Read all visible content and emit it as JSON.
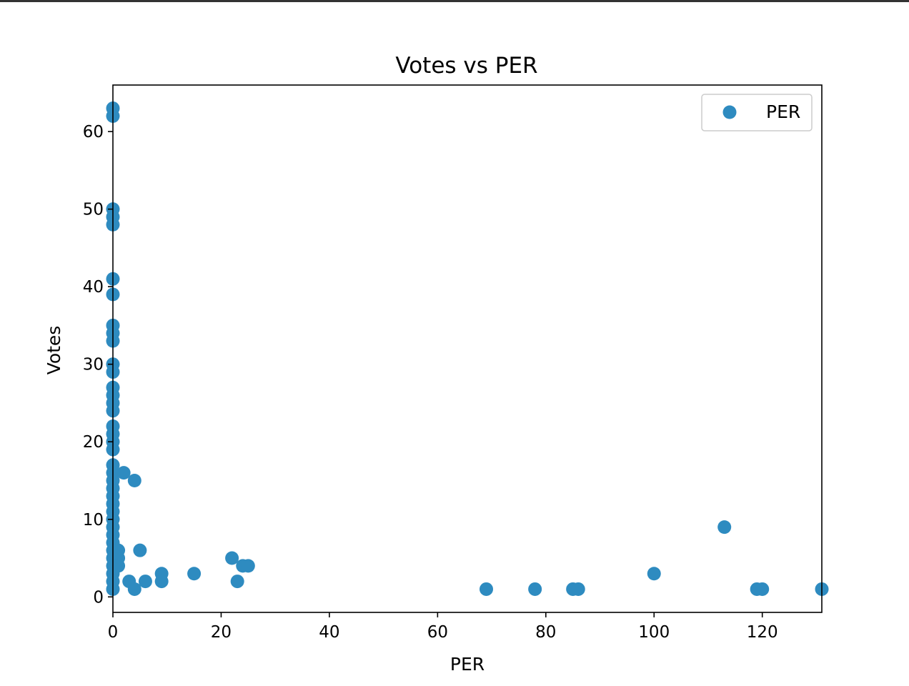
{
  "chart_data": {
    "type": "scatter",
    "title": "Votes vs PER",
    "xlabel": "PER",
    "ylabel": "Votes",
    "xlim": [
      0,
      131
    ],
    "ylim": [
      -2,
      66
    ],
    "xticks": [
      0,
      20,
      40,
      60,
      80,
      100,
      120
    ],
    "yticks": [
      0,
      10,
      20,
      30,
      40,
      50,
      60
    ],
    "grid": false,
    "legend": {
      "placement": "top-right",
      "entries": [
        "PER"
      ]
    },
    "series": [
      {
        "name": "PER",
        "color": "#2e8bc0",
        "points": [
          [
            0,
            63
          ],
          [
            0,
            62
          ],
          [
            0,
            50
          ],
          [
            0,
            49
          ],
          [
            0,
            48
          ],
          [
            0,
            41
          ],
          [
            0,
            39
          ],
          [
            0,
            35
          ],
          [
            0,
            34
          ],
          [
            0,
            33
          ],
          [
            0,
            30
          ],
          [
            0,
            29
          ],
          [
            0,
            27
          ],
          [
            0,
            26
          ],
          [
            0,
            25
          ],
          [
            0,
            24
          ],
          [
            0,
            22
          ],
          [
            0,
            21
          ],
          [
            0,
            20
          ],
          [
            0,
            19
          ],
          [
            0,
            17
          ],
          [
            0,
            16
          ],
          [
            0,
            15
          ],
          [
            0,
            14
          ],
          [
            0,
            13
          ],
          [
            0,
            12
          ],
          [
            0,
            11
          ],
          [
            0,
            10
          ],
          [
            0,
            9
          ],
          [
            0,
            8
          ],
          [
            0,
            7
          ],
          [
            0,
            6
          ],
          [
            0,
            5
          ],
          [
            0,
            4
          ],
          [
            0,
            3
          ],
          [
            0,
            2
          ],
          [
            0,
            1
          ],
          [
            1,
            6
          ],
          [
            1,
            5
          ],
          [
            1,
            4
          ],
          [
            2,
            16
          ],
          [
            3,
            2
          ],
          [
            4,
            15
          ],
          [
            4,
            1
          ],
          [
            5,
            6
          ],
          [
            6,
            2
          ],
          [
            9,
            3
          ],
          [
            9,
            2
          ],
          [
            15,
            3
          ],
          [
            22,
            5
          ],
          [
            23,
            2
          ],
          [
            24,
            4
          ],
          [
            25,
            4
          ],
          [
            69,
            1
          ],
          [
            78,
            1
          ],
          [
            85,
            1
          ],
          [
            86,
            1
          ],
          [
            100,
            3
          ],
          [
            113,
            9
          ],
          [
            119,
            1
          ],
          [
            120,
            1
          ],
          [
            131,
            1
          ]
        ]
      }
    ]
  }
}
